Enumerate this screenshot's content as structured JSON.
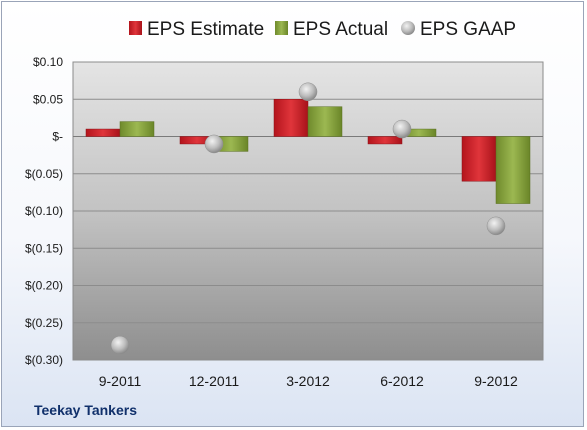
{
  "company": "Teekay Tankers",
  "colors": {
    "estimate": "#d4262e",
    "actual": "#8aa63e",
    "gaap": "#b5b5b5"
  },
  "chart_data": {
    "type": "bar",
    "categories": [
      "9-2011",
      "12-2011",
      "3-2012",
      "6-2012",
      "9-2012"
    ],
    "series": [
      {
        "name": "EPS Estimate",
        "kind": "bar",
        "values": [
          0.01,
          -0.01,
          0.05,
          -0.01,
          -0.06
        ]
      },
      {
        "name": "EPS Actual",
        "kind": "bar",
        "values": [
          0.02,
          -0.02,
          0.04,
          0.01,
          -0.09
        ]
      },
      {
        "name": "EPS GAAP",
        "kind": "marker",
        "values": [
          -0.28,
          -0.01,
          0.06,
          0.01,
          -0.12
        ]
      }
    ],
    "ylim": [
      -0.3,
      0.1
    ],
    "yticks": [
      0.1,
      0.05,
      0,
      -0.05,
      -0.1,
      -0.15,
      -0.2,
      -0.25,
      -0.3
    ],
    "ytick_labels": [
      "$0.10",
      "$0.05",
      "$-",
      "$(0.05)",
      "$(0.10)",
      "$(0.15)",
      "$(0.20)",
      "$(0.25)",
      "$(0.30)"
    ],
    "legend_position": "top",
    "grid": true
  }
}
